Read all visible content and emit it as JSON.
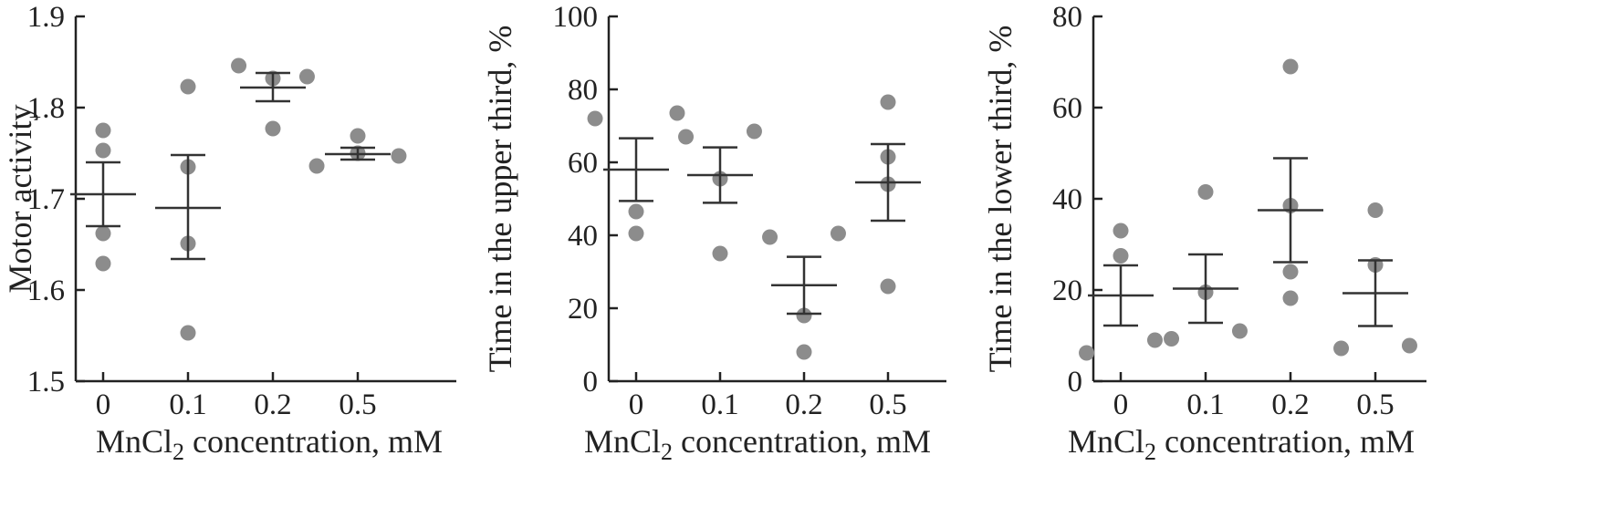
{
  "chart_data": [
    {
      "type": "scatter",
      "title": "",
      "xlabel_parts": [
        "MnCl",
        "2",
        " concentration, mM"
      ],
      "ylabel": "Motor activity",
      "categories": [
        "0",
        "0.1",
        "0.2",
        "0.5"
      ],
      "ylim": [
        1.5,
        1.9
      ],
      "yticks": [
        1.5,
        1.6,
        1.7,
        1.8,
        1.9
      ],
      "ytick_labels": [
        "1.5",
        "1.6",
        "1.7",
        "1.8",
        "1.9"
      ],
      "points": [
        [
          [
            0,
            1.775
          ],
          [
            0,
            1.753
          ],
          [
            0,
            1.662
          ],
          [
            0,
            1.629
          ]
        ],
        [
          [
            0,
            1.823
          ],
          [
            0,
            1.735
          ],
          [
            0,
            1.651
          ],
          [
            0,
            1.553
          ]
        ],
        [
          [
            -0.25,
            1.846
          ],
          [
            0,
            1.832
          ],
          [
            0.25,
            1.834
          ],
          [
            0,
            1.777
          ]
        ],
        [
          [
            -0.3,
            1.736
          ],
          [
            0,
            1.75
          ],
          [
            0.3,
            1.747
          ],
          [
            0,
            1.769
          ]
        ]
      ],
      "mean": [
        1.705,
        1.69,
        1.822,
        1.749
      ],
      "err_low": [
        1.67,
        1.634,
        1.807,
        1.743
      ],
      "err_high": [
        1.74,
        1.748,
        1.838,
        1.756
      ],
      "grid": false,
      "marker_color": "#8c8c8c",
      "line_color": "#333333"
    },
    {
      "type": "scatter",
      "title": "",
      "xlabel_parts": [
        "MnCl",
        "2",
        " concentration, mM"
      ],
      "ylabel": "Time in the upper third, %",
      "categories": [
        "0",
        "0.1",
        "0.2",
        "0.5"
      ],
      "ylim": [
        0,
        100
      ],
      "yticks": [
        0,
        20,
        40,
        60,
        80,
        100
      ],
      "ytick_labels": [
        "0",
        "20",
        "40",
        "60",
        "80",
        "100"
      ],
      "points": [
        [
          [
            -0.3,
            72
          ],
          [
            0.3,
            73.5
          ],
          [
            0,
            46.5
          ],
          [
            0,
            40.5
          ]
        ],
        [
          [
            -0.25,
            67
          ],
          [
            0.25,
            68.5
          ],
          [
            0,
            55.5
          ],
          [
            0,
            35
          ]
        ],
        [
          [
            -0.25,
            39.5
          ],
          [
            0.25,
            40.5
          ],
          [
            0,
            18
          ],
          [
            0,
            8
          ]
        ],
        [
          [
            0,
            76.5
          ],
          [
            0,
            61.5
          ],
          [
            0,
            54
          ],
          [
            0,
            26
          ]
        ]
      ],
      "mean": [
        58,
        56.5,
        26.3,
        54.5
      ],
      "err_low": [
        49.4,
        48.9,
        18.5,
        44
      ],
      "err_high": [
        66.6,
        64.1,
        34.1,
        65
      ],
      "grid": false,
      "marker_color": "#8c8c8c",
      "line_color": "#333333"
    },
    {
      "type": "scatter",
      "title": "",
      "xlabel_parts": [
        "MnCl",
        "2",
        " concentration, mM"
      ],
      "ylabel": "Time in the lower third, %",
      "categories": [
        "0",
        "0.1",
        "0.2",
        "0.5"
      ],
      "ylim": [
        0,
        80
      ],
      "yticks": [
        0,
        20,
        40,
        60,
        80
      ],
      "ytick_labels": [
        "0",
        "20",
        "40",
        "60",
        "80"
      ],
      "points": [
        [
          [
            0,
            33
          ],
          [
            0,
            27.5
          ],
          [
            0.25,
            9
          ],
          [
            -0.25,
            6.2
          ]
        ],
        [
          [
            0,
            41.5
          ],
          [
            0,
            19.5
          ],
          [
            -0.25,
            9.3
          ],
          [
            0.25,
            11
          ]
        ],
        [
          [
            0,
            69
          ],
          [
            0,
            38.5
          ],
          [
            0,
            24
          ],
          [
            0,
            18.2
          ]
        ],
        [
          [
            0,
            37.5
          ],
          [
            0,
            25.5
          ],
          [
            -0.25,
            7.2
          ],
          [
            0.25,
            7.8
          ]
        ]
      ],
      "mean": [
        18.8,
        20.3,
        37.5,
        19.3
      ],
      "err_low": [
        12.2,
        12.8,
        26.1,
        12.1
      ],
      "err_high": [
        25.4,
        27.8,
        48.9,
        26.5
      ],
      "grid": false,
      "marker_color": "#8c8c8c",
      "line_color": "#333333"
    }
  ]
}
